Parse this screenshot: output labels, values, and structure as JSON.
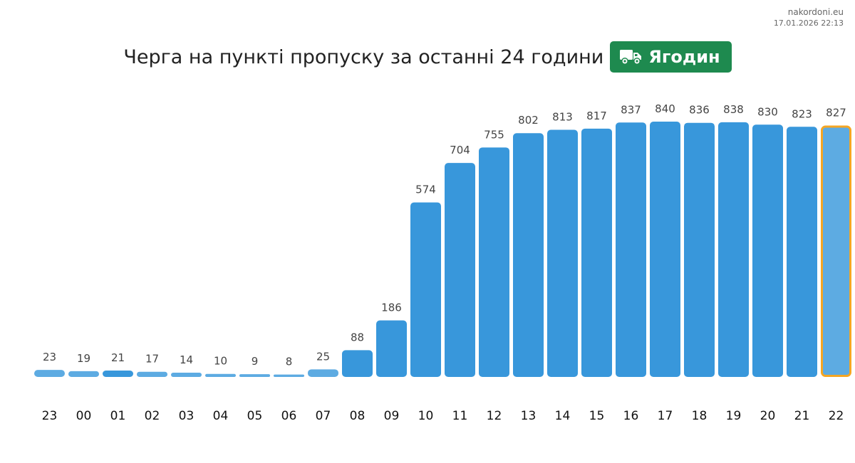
{
  "site": "nakordoni.eu",
  "timestamp": "17.01.2026 22:13",
  "title": "Черга на пункті пропуску за останні 24 години",
  "badge": {
    "icon": "truck-icon",
    "label": "Ягодин",
    "color": "#1e8a4f"
  },
  "colors": {
    "bar": "#3897db",
    "bar_light": "#5dabe2",
    "bar_lighter": "#7fbfea",
    "highlight": "#f5a623"
  },
  "chart_data": {
    "type": "bar",
    "categories": [
      "23",
      "00",
      "01",
      "02",
      "03",
      "04",
      "05",
      "06",
      "07",
      "08",
      "09",
      "10",
      "11",
      "12",
      "13",
      "14",
      "15",
      "16",
      "17",
      "18",
      "19",
      "20",
      "21",
      "22"
    ],
    "values": [
      23,
      19,
      21,
      17,
      14,
      10,
      9,
      8,
      25,
      88,
      186,
      574,
      704,
      755,
      802,
      813,
      817,
      837,
      840,
      836,
      838,
      830,
      823,
      827
    ],
    "highlight_index": 23,
    "title": "",
    "xlabel": "",
    "ylabel": "",
    "ylim": [
      0,
      840
    ],
    "grid": false,
    "legend": "none"
  }
}
